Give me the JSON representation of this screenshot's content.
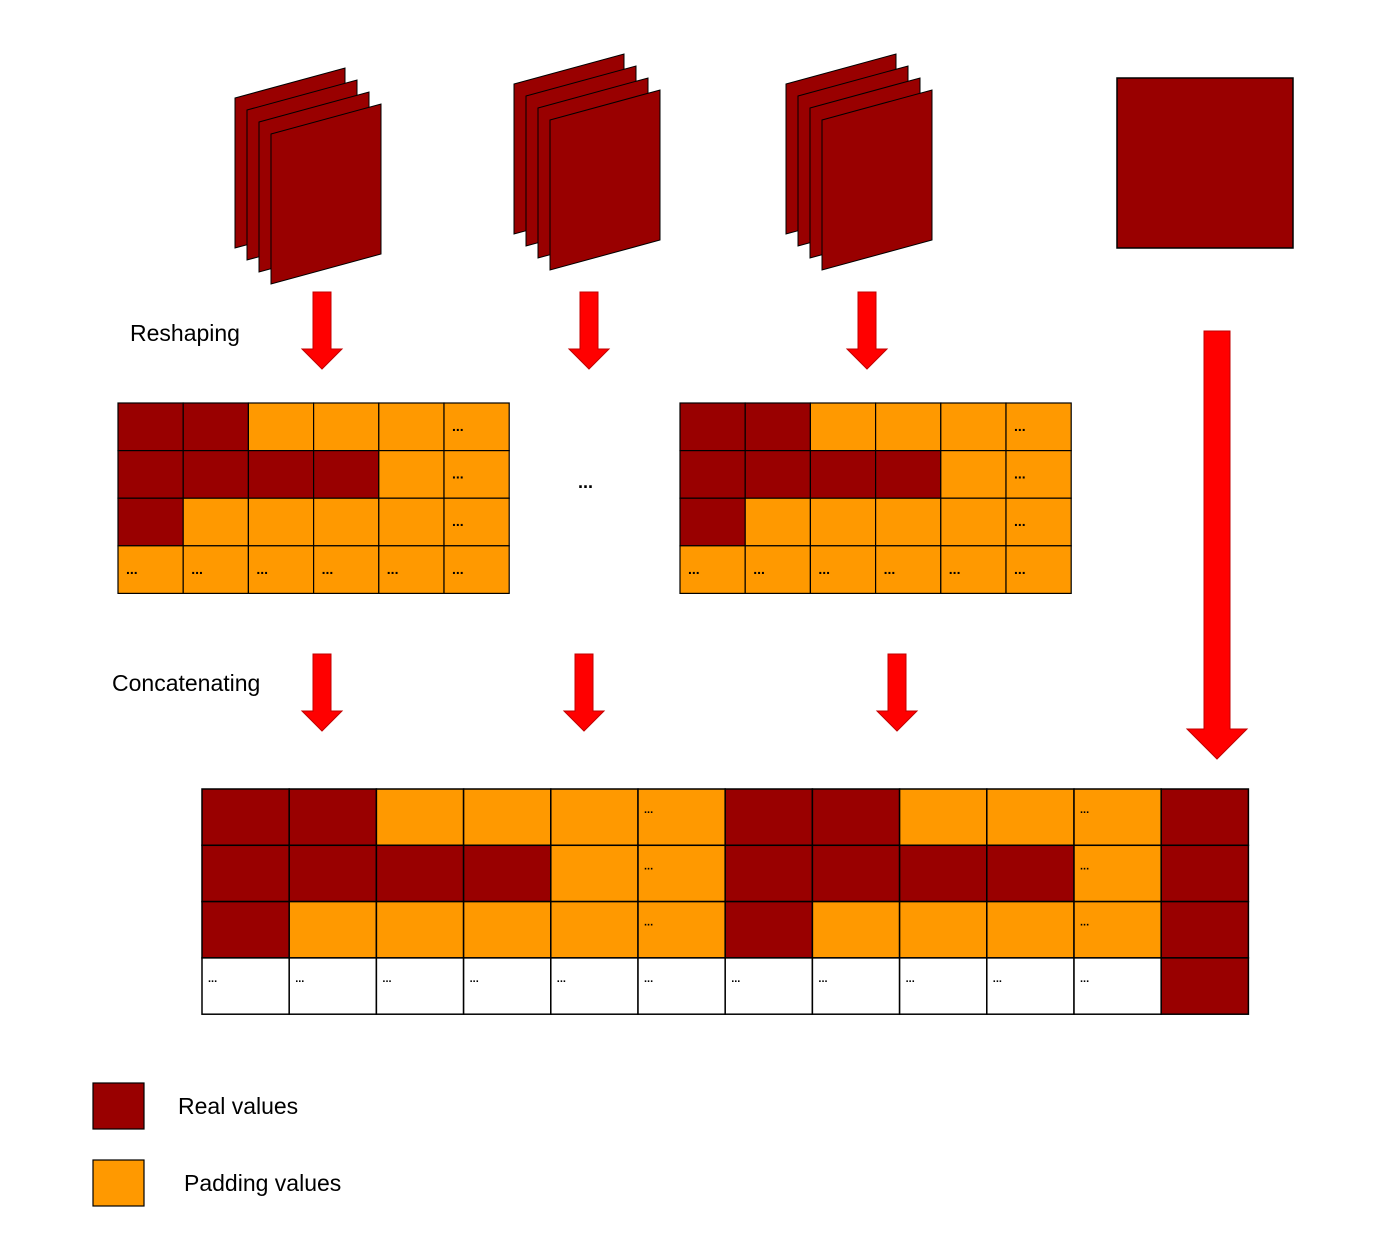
{
  "labels": {
    "reshaping": "Reshaping",
    "concatenating": "Concatenating",
    "ellipsis": "..."
  },
  "legend": [
    {
      "key": "real",
      "label": "Real values"
    },
    {
      "key": "pad",
      "label": "Padding values"
    }
  ],
  "colors": {
    "real": "#990000",
    "pad": "#FF9900",
    "empty": "#FFFFFF",
    "arrow": "#FF0000",
    "arrow_stroke": "#C00000",
    "border": "#000000"
  },
  "feature_stacks": [
    {
      "layers": 4
    },
    {
      "layers": 4
    },
    {
      "layers": 4
    },
    {
      "layers": 1
    }
  ],
  "reshaped_matrices": [
    {
      "rows": [
        [
          "R",
          "R",
          "P",
          "P",
          "P",
          "E"
        ],
        [
          "R",
          "R",
          "R",
          "R",
          "P",
          "E"
        ],
        [
          "R",
          "P",
          "P",
          "P",
          "P",
          "E"
        ],
        [
          "E",
          "E",
          "E",
          "E",
          "E",
          "E"
        ]
      ]
    },
    {
      "rows": [
        [
          "R",
          "R",
          "P",
          "P",
          "P",
          "E"
        ],
        [
          "R",
          "R",
          "R",
          "R",
          "P",
          "E"
        ],
        [
          "R",
          "P",
          "P",
          "P",
          "P",
          "E"
        ],
        [
          "E",
          "E",
          "E",
          "E",
          "E",
          "E"
        ]
      ]
    }
  ],
  "concatenated_matrix": {
    "rows": [
      [
        "R",
        "R",
        "P",
        "P",
        "P",
        "E",
        "R",
        "R",
        "P",
        "P",
        "E",
        "R"
      ],
      [
        "R",
        "R",
        "R",
        "R",
        "P",
        "E",
        "R",
        "R",
        "R",
        "R",
        "E",
        "R"
      ],
      [
        "R",
        "P",
        "P",
        "P",
        "P",
        "E",
        "R",
        "P",
        "P",
        "P",
        "E",
        "R"
      ],
      [
        "W",
        "W",
        "W",
        "W",
        "W",
        "W",
        "W",
        "W",
        "W",
        "W",
        "W",
        "R"
      ]
    ],
    "ellipsis_legend": "R = real, P = padding, E = padding with ellipsis, W = empty with ellipsis"
  }
}
